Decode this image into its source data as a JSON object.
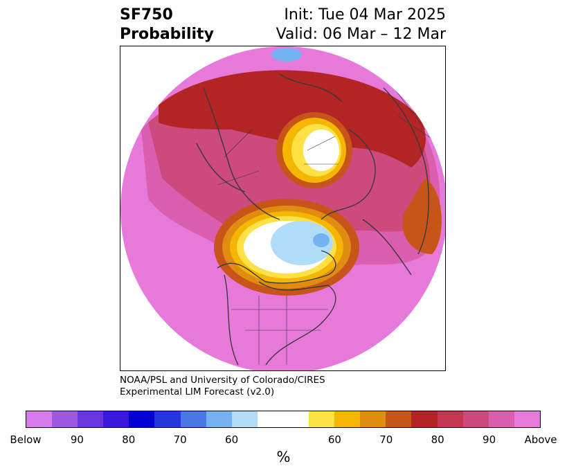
{
  "title": {
    "left_line1": "SF750",
    "left_line2": "Probability",
    "right_line1": "Init: Tue 04 Mar 2025",
    "right_line2": "Valid: 06 Mar – 12 Mar"
  },
  "credit": {
    "line1": "NOAA/PSL and University of Colorado/CIRES",
    "line2": "Experimental LIM Forecast (v2.0)"
  },
  "colorbar": {
    "unit": "%",
    "tick_labels": [
      "Below",
      "90",
      "80",
      "70",
      "60",
      "60",
      "70",
      "80",
      "90",
      "Above"
    ],
    "below_colors": [
      "#d97aeb",
      "#9e59e3",
      "#6a35db",
      "#3a17d9",
      "#0000d3",
      "#2536dc",
      "#4a78e8",
      "#74b2f3",
      "#b0dcf8"
    ],
    "neutral_color": "#ffffff",
    "above_colors": [
      "#fee144",
      "#f4b601",
      "#e08c10",
      "#c75419",
      "#b32424",
      "#c43550",
      "#cc4a7e",
      "#db5fae",
      "#e679d9"
    ]
  },
  "map": {
    "projection": "north-polar-stereographic",
    "colors": {
      "land_outline": "#3a3a3a",
      "ocean_background": "#ffffff"
    }
  }
}
